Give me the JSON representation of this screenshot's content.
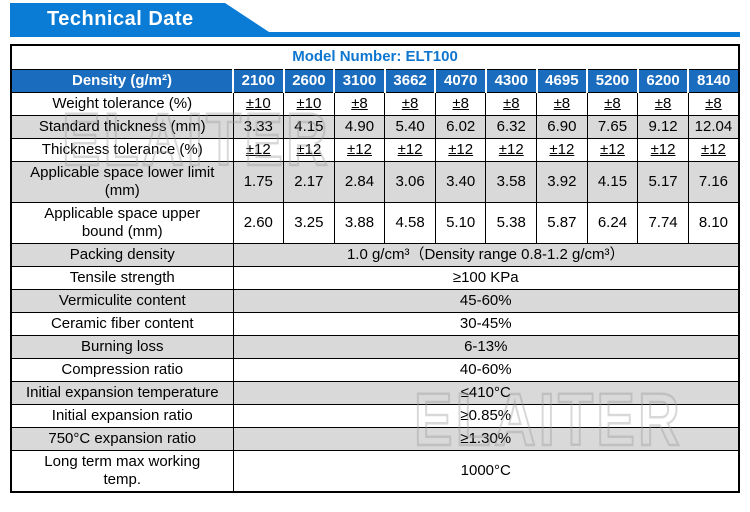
{
  "page": {
    "title": "Technical Date"
  },
  "watermark": {
    "text": "ELAITER"
  },
  "colors": {
    "banner_blue": "#0a7cd6",
    "header_blue": "#1a6cbe",
    "model_text_blue": "#0f76cf",
    "row_gray": "#d9d9d9",
    "watermark_gray": "#9a9a9a"
  },
  "table": {
    "model_number_label": "Model Number: ELT100",
    "density_header": {
      "label": "Density (g/m²)",
      "columns": [
        "2100",
        "2600",
        "3100",
        "3662",
        "4070",
        "4300",
        "4695",
        "5200",
        "6200",
        "8140"
      ]
    },
    "rows": [
      {
        "label": "Weight tolerance (%)",
        "underline": true,
        "values": [
          "±10",
          "±10",
          "±8",
          "±8",
          "±8",
          "±8",
          "±8",
          "±8",
          "±8",
          "±8"
        ]
      },
      {
        "label": "Standard thickness (mm)",
        "values": [
          "3.33",
          "4.15",
          "4.90",
          "5.40",
          "6.02",
          "6.32",
          "6.90",
          "7.65",
          "9.12",
          "12.04"
        ]
      },
      {
        "label": "Thickness tolerance (%)",
        "underline": true,
        "values": [
          "±12",
          "±12",
          "±12",
          "±12",
          "±12",
          "±12",
          "±12",
          "±12",
          "±12",
          "±12"
        ]
      },
      {
        "label": "Applicable space lower limit\n(mm)",
        "values": [
          "1.75",
          "2.17",
          "2.84",
          "3.06",
          "3.40",
          "3.58",
          "3.92",
          "4.15",
          "5.17",
          "7.16"
        ]
      },
      {
        "label": "Applicable space upper\nbound (mm)",
        "values": [
          "2.60",
          "3.25",
          "3.88",
          "4.58",
          "5.10",
          "5.38",
          "5.87",
          "6.24",
          "7.74",
          "8.10"
        ]
      },
      {
        "label": "Packing density",
        "span": "1.0 g/cm³（Density range 0.8-1.2 g/cm³）"
      },
      {
        "label": "Tensile strength",
        "span": "≥100 KPa"
      },
      {
        "label": "Vermiculite content",
        "span": "45-60%"
      },
      {
        "label": "Ceramic fiber content",
        "span": "30-45%"
      },
      {
        "label": "Burning loss",
        "span": "6-13%"
      },
      {
        "label": "Compression ratio",
        "span": "40-60%"
      },
      {
        "label": "Initial expansion temperature",
        "span": "≤410°C"
      },
      {
        "label": "Initial expansion ratio",
        "span": "≥0.85%"
      },
      {
        "label": "750°C expansion ratio",
        "span": "≥1.30%"
      },
      {
        "label": "Long term max working\ntemp.",
        "span": "1000°C"
      }
    ]
  }
}
